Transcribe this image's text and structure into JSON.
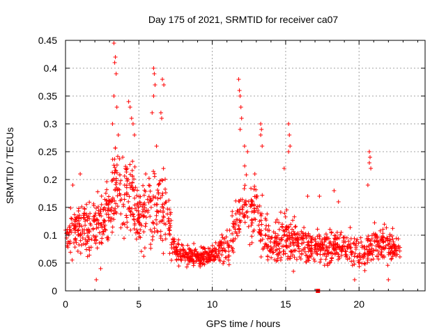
{
  "chart_data": {
    "type": "scatter",
    "title": "Day 175 of 2021, SRMTID for receiver ca07",
    "xlabel": "GPS time / hours",
    "ylabel": "SRMTID / TECUs",
    "xlim": [
      0,
      24.5
    ],
    "ylim": [
      0,
      0.45
    ],
    "grid": true,
    "marker": "+",
    "color": "#ff0000",
    "x_ticks": [
      0,
      5,
      10,
      15,
      20
    ],
    "x_tick_labels": [
      "0",
      "5",
      "10",
      "15",
      "20"
    ],
    "y_ticks": [
      0,
      0.05,
      0.1,
      0.15,
      0.2,
      0.25,
      0.3,
      0.35,
      0.4,
      0.45
    ],
    "y_tick_labels": [
      "0",
      "0.05",
      "0.1",
      "0.15",
      "0.2",
      "0.25",
      "0.3",
      "0.35",
      "0.4",
      "0.45"
    ],
    "profile": [
      {
        "x": 0.0,
        "median": 0.1,
        "spread": 0.05
      },
      {
        "x": 1.0,
        "median": 0.11,
        "spread": 0.06
      },
      {
        "x": 2.0,
        "median": 0.12,
        "spread": 0.07
      },
      {
        "x": 3.0,
        "median": 0.14,
        "spread": 0.09
      },
      {
        "x": 3.5,
        "median": 0.2,
        "spread": 0.14
      },
      {
        "x": 4.0,
        "median": 0.16,
        "spread": 0.1
      },
      {
        "x": 4.5,
        "median": 0.18,
        "spread": 0.11
      },
      {
        "x": 5.0,
        "median": 0.13,
        "spread": 0.08
      },
      {
        "x": 6.0,
        "median": 0.15,
        "spread": 0.11
      },
      {
        "x": 6.8,
        "median": 0.14,
        "spread": 0.1
      },
      {
        "x": 7.5,
        "median": 0.07,
        "spread": 0.03
      },
      {
        "x": 9.0,
        "median": 0.06,
        "spread": 0.025
      },
      {
        "x": 10.5,
        "median": 0.07,
        "spread": 0.035
      },
      {
        "x": 11.5,
        "median": 0.1,
        "spread": 0.06
      },
      {
        "x": 12.0,
        "median": 0.15,
        "spread": 0.09
      },
      {
        "x": 13.0,
        "median": 0.14,
        "spread": 0.08
      },
      {
        "x": 14.0,
        "median": 0.08,
        "spread": 0.05
      },
      {
        "x": 15.0,
        "median": 0.1,
        "spread": 0.07
      },
      {
        "x": 16.0,
        "median": 0.08,
        "spread": 0.05
      },
      {
        "x": 17.0,
        "median": 0.08,
        "spread": 0.04
      },
      {
        "x": 18.0,
        "median": 0.08,
        "spread": 0.05
      },
      {
        "x": 19.0,
        "median": 0.08,
        "spread": 0.04
      },
      {
        "x": 20.0,
        "median": 0.07,
        "spread": 0.04
      },
      {
        "x": 21.0,
        "median": 0.08,
        "spread": 0.05
      },
      {
        "x": 22.0,
        "median": 0.08,
        "spread": 0.05
      },
      {
        "x": 22.8,
        "median": 0.08,
        "spread": 0.04
      }
    ],
    "outliers": [
      [
        3.3,
        0.445
      ],
      [
        3.4,
        0.42
      ],
      [
        3.35,
        0.41
      ],
      [
        3.45,
        0.39
      ],
      [
        3.3,
        0.35
      ],
      [
        3.5,
        0.33
      ],
      [
        3.2,
        0.3
      ],
      [
        3.6,
        0.28
      ],
      [
        4.3,
        0.34
      ],
      [
        4.4,
        0.33
      ],
      [
        4.5,
        0.31
      ],
      [
        4.6,
        0.3
      ],
      [
        4.7,
        0.28
      ],
      [
        6.0,
        0.4
      ],
      [
        6.05,
        0.39
      ],
      [
        6.1,
        0.37
      ],
      [
        6.0,
        0.35
      ],
      [
        6.6,
        0.38
      ],
      [
        6.7,
        0.37
      ],
      [
        6.5,
        0.32
      ],
      [
        6.55,
        0.31
      ],
      [
        5.9,
        0.32
      ],
      [
        6.2,
        0.26
      ],
      [
        11.8,
        0.38
      ],
      [
        11.85,
        0.36
      ],
      [
        11.9,
        0.35
      ],
      [
        11.95,
        0.33
      ],
      [
        12.0,
        0.31
      ],
      [
        11.9,
        0.29
      ],
      [
        12.2,
        0.26
      ],
      [
        12.4,
        0.25
      ],
      [
        13.3,
        0.3
      ],
      [
        13.35,
        0.29
      ],
      [
        13.3,
        0.28
      ],
      [
        13.4,
        0.26
      ],
      [
        15.2,
        0.3
      ],
      [
        15.25,
        0.28
      ],
      [
        15.3,
        0.26
      ],
      [
        15.2,
        0.25
      ],
      [
        14.9,
        0.22
      ],
      [
        20.7,
        0.25
      ],
      [
        20.75,
        0.24
      ],
      [
        20.7,
        0.23
      ],
      [
        20.8,
        0.22
      ],
      [
        20.6,
        0.19
      ],
      [
        3.9,
        0.24
      ],
      [
        4.2,
        0.22
      ],
      [
        12.9,
        0.21
      ],
      [
        16.5,
        0.17
      ],
      [
        17.3,
        0.17
      ],
      [
        18.3,
        0.18
      ],
      [
        18.6,
        0.16
      ],
      [
        1.0,
        0.21
      ],
      [
        0.5,
        0.19
      ],
      [
        2.4,
        0.04
      ],
      [
        2.1,
        0.02
      ],
      [
        22.0,
        0.02
      ],
      [
        19.7,
        0.02
      ]
    ],
    "gap_markers": [
      [
        17.2,
        0.0
      ]
    ]
  }
}
